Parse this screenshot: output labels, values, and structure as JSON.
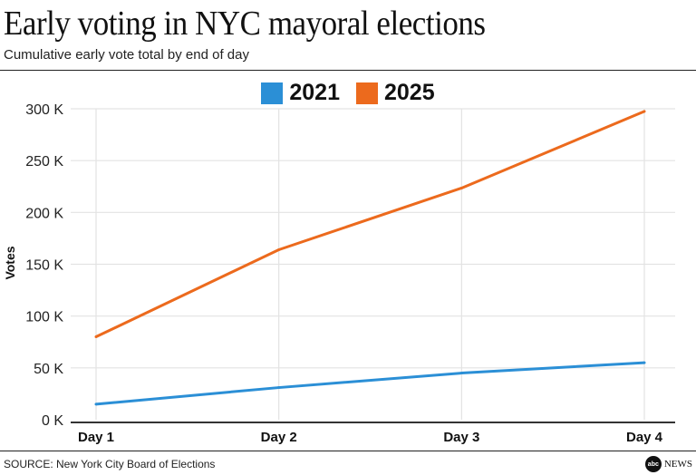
{
  "header": {
    "title": "Early voting in NYC mayoral elections",
    "subtitle": "Cumulative early vote total by end of day"
  },
  "footer": {
    "source": "SOURCE: New York City Board of Elections",
    "logo_text": "abc NEWS"
  },
  "chart_data": {
    "type": "line",
    "title": "Early voting in NYC mayoral elections",
    "subtitle": "Cumulative early vote total by end of day",
    "xlabel": "",
    "ylabel": "Votes",
    "categories": [
      "Day 1",
      "Day 2",
      "Day 3",
      "Day 4"
    ],
    "ylim": [
      0,
      300000
    ],
    "yticks": [
      0,
      50000,
      100000,
      150000,
      200000,
      250000,
      300000
    ],
    "ytick_labels": [
      "0 K",
      "50 K",
      "100 K",
      "150 K",
      "200 K",
      "250 K",
      "300 K"
    ],
    "grid": true,
    "legend_position": "top-center",
    "series": [
      {
        "name": "2021",
        "color": "#2b8fd6",
        "values": [
          15000,
          31000,
          45000,
          55000
        ]
      },
      {
        "name": "2025",
        "color": "#ec6a1d",
        "values": [
          80000,
          164000,
          223500,
          297500
        ]
      }
    ]
  }
}
